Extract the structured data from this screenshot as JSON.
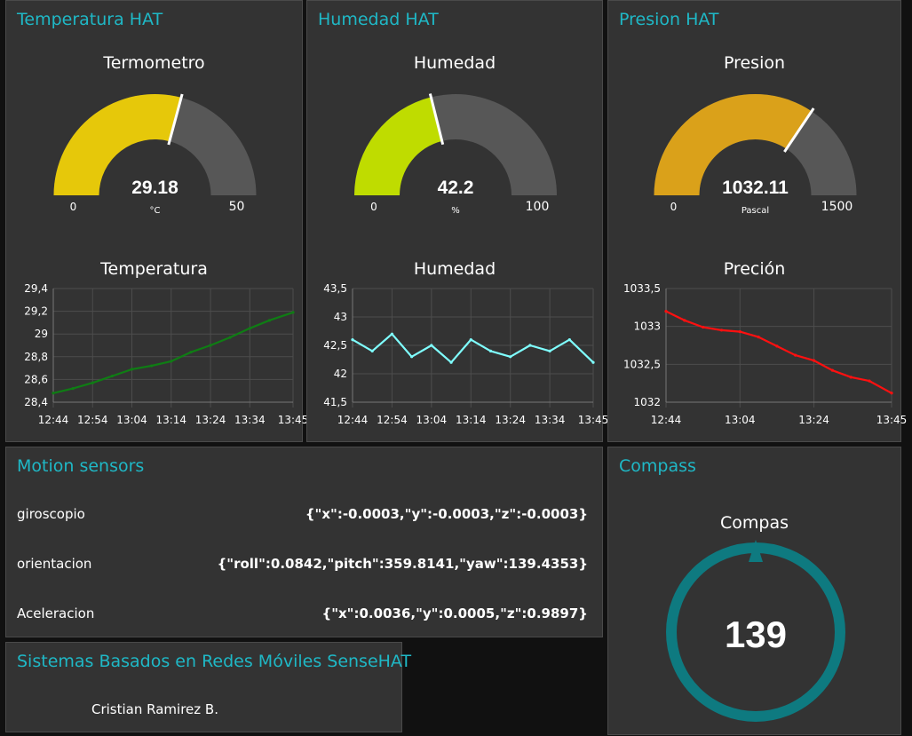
{
  "groups": {
    "temp": {
      "title": "Temperatura HAT",
      "gauge": {
        "label": "Termometro",
        "value": 29.18,
        "value_text": "29.18",
        "unit": "°C",
        "min": 0,
        "max": 50,
        "min_text": "0",
        "max_text": "50",
        "color": "#e6c80a"
      },
      "chart": {
        "label": "Temperatura",
        "color": "#0f7d14",
        "chart_data": {
          "type": "line",
          "ylim": [
            28.4,
            29.4
          ],
          "yticks": [
            "28,4",
            "28,6",
            "28,8",
            "29",
            "29,2",
            "29,4"
          ],
          "xticks": [
            "12:44",
            "12:54",
            "13:04",
            "13:14",
            "13:24",
            "13:34",
            "13:45"
          ],
          "series": [
            {
              "x": [
                "12:44",
                "12:49",
                "12:54",
                "12:59",
                "13:04",
                "13:09",
                "13:14",
                "13:19",
                "13:24",
                "13:29",
                "13:34",
                "13:39",
                "13:45"
              ],
              "values": [
                28.48,
                28.52,
                28.57,
                28.63,
                28.69,
                28.72,
                28.76,
                28.84,
                28.9,
                28.97,
                29.05,
                29.12,
                29.19
              ]
            }
          ]
        }
      }
    },
    "hum": {
      "title": "Humedad HAT",
      "gauge": {
        "label": "Humedad",
        "value": 42.2,
        "value_text": "42.2",
        "unit": "%",
        "min": 0,
        "max": 100,
        "min_text": "0",
        "max_text": "100",
        "color": "#bfdc00"
      },
      "chart": {
        "label": "Humedad",
        "color": "#7fffff",
        "chart_data": {
          "type": "line",
          "ylim": [
            41.5,
            43.5
          ],
          "yticks": [
            "41,5",
            "42",
            "42,5",
            "43",
            "43,5"
          ],
          "xticks": [
            "12:44",
            "12:54",
            "13:04",
            "13:14",
            "13:24",
            "13:34",
            "13:45"
          ],
          "series": [
            {
              "x": [
                "12:44",
                "12:49",
                "12:54",
                "12:59",
                "13:04",
                "13:09",
                "13:14",
                "13:19",
                "13:24",
                "13:29",
                "13:34",
                "13:39",
                "13:45"
              ],
              "values": [
                42.6,
                42.4,
                42.7,
                42.3,
                42.5,
                42.2,
                42.6,
                42.4,
                42.3,
                42.5,
                42.4,
                42.6,
                42.2
              ]
            }
          ]
        }
      }
    },
    "pres": {
      "title": "Presion HAT",
      "gauge": {
        "label": "Presion",
        "value": 1032.11,
        "value_text": "1032.11",
        "unit": "Pascal",
        "min": 0,
        "max": 1500,
        "min_text": "0",
        "max_text": "1500",
        "color": "#daa11a"
      },
      "chart": {
        "label": "Preción",
        "color": "#ff1010",
        "chart_data": {
          "type": "line",
          "ylim": [
            1032,
            1033.5
          ],
          "yticks": [
            "1032",
            "1032,5",
            "1033",
            "1033,5"
          ],
          "xticks": [
            "12:44",
            "13:04",
            "13:24",
            "13:45"
          ],
          "series": [
            {
              "x": [
                "12:44",
                "12:49",
                "12:54",
                "12:59",
                "13:04",
                "13:09",
                "13:14",
                "13:19",
                "13:24",
                "13:29",
                "13:34",
                "13:39",
                "13:45"
              ],
              "values": [
                1033.2,
                1033.08,
                1032.99,
                1032.95,
                1032.93,
                1032.86,
                1032.74,
                1032.62,
                1032.55,
                1032.42,
                1032.33,
                1032.28,
                1032.12
              ]
            }
          ]
        }
      }
    }
  },
  "motion": {
    "title": "Motion sensors",
    "rows": [
      {
        "label": "giroscopio",
        "value": "{\"x\":-0.0003,\"y\":-0.0003,\"z\":-0.0003}"
      },
      {
        "label": "orientacion",
        "value": "{\"roll\":0.0842,\"pitch\":359.8141,\"yaw\":139.4353}"
      },
      {
        "label": "Aceleracion",
        "value": "{\"x\":0.0036,\"y\":0.0005,\"z\":0.9897}"
      }
    ]
  },
  "compass": {
    "title": "Compass",
    "label": "Compas",
    "value": "139",
    "color": "#0e7a80"
  },
  "info": {
    "title": "Sistemas Basados en Redes Móviles SenseHAT",
    "author": "Cristian Ramirez B."
  },
  "colors": {
    "accent": "#1fb8c6",
    "card": "#333333",
    "page": "#111111",
    "gauge_track": "#575757"
  }
}
